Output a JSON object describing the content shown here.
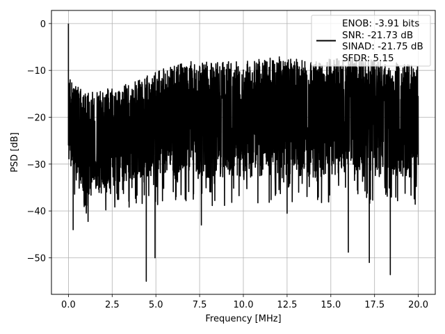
{
  "chart_data": {
    "type": "line",
    "title": "",
    "xlabel": "Frequency [MHz]",
    "ylabel": "PSD [dB]",
    "xlim": [
      -0.97,
      20.97
    ],
    "ylim": [
      -57.8,
      2.8
    ],
    "x_ticks": [
      0.0,
      2.5,
      5.0,
      7.5,
      10.0,
      12.5,
      15.0,
      17.5,
      20.0
    ],
    "x_tick_labels": [
      "0.0",
      "2.5",
      "5.0",
      "7.5",
      "10.0",
      "12.5",
      "15.0",
      "17.5",
      "20.0"
    ],
    "y_ticks": [
      0,
      -10,
      -20,
      -30,
      -40,
      -50
    ],
    "y_tick_labels": [
      "0",
      "−10",
      "−20",
      "−30",
      "−40",
      "−50"
    ],
    "grid": true,
    "legend_position": "top-right",
    "series": [
      {
        "color": "#000000",
        "description": "Noisy power spectral density; 0 dB at DC, then fluctuating roughly between -40 and -5 dB across 0–20 MHz",
        "band_x": [
          0.1,
          1.0,
          2.0,
          3.0,
          4.0,
          5.0,
          6.0,
          7.0,
          8.0,
          10.0,
          12.0,
          14.0,
          16.0,
          18.0,
          20.0
        ],
        "band_upper": [
          -12,
          -15,
          -14,
          -13,
          -12,
          -10,
          -9,
          -8,
          -8,
          -8,
          -7,
          -8,
          -7,
          -8,
          -9
        ],
        "band_lower": [
          -30,
          -38,
          -36,
          -34,
          -33,
          -33,
          -32,
          -32,
          -33,
          -33,
          -32,
          -33,
          -32,
          -33,
          -33
        ],
        "points": [
          [
            0.0,
            0.0
          ],
          [
            0.05,
            -22.0
          ],
          [
            0.1,
            -12.0
          ],
          [
            0.2,
            -25.0
          ],
          [
            0.27,
            -44.0
          ],
          [
            4.45,
            -55.0
          ],
          [
            4.95,
            -50.0
          ],
          [
            7.6,
            -43.0
          ],
          [
            12.5,
            -40.5
          ],
          [
            16.0,
            -48.8
          ],
          [
            17.2,
            -51.0
          ],
          [
            18.4,
            -53.6
          ]
        ]
      }
    ],
    "legend": {
      "entries": [
        "ENOB: -3.91 bits",
        "SNR: -21.73 dB",
        "SINAD: -21.75 dB",
        "SFDR: 5.15"
      ]
    }
  }
}
